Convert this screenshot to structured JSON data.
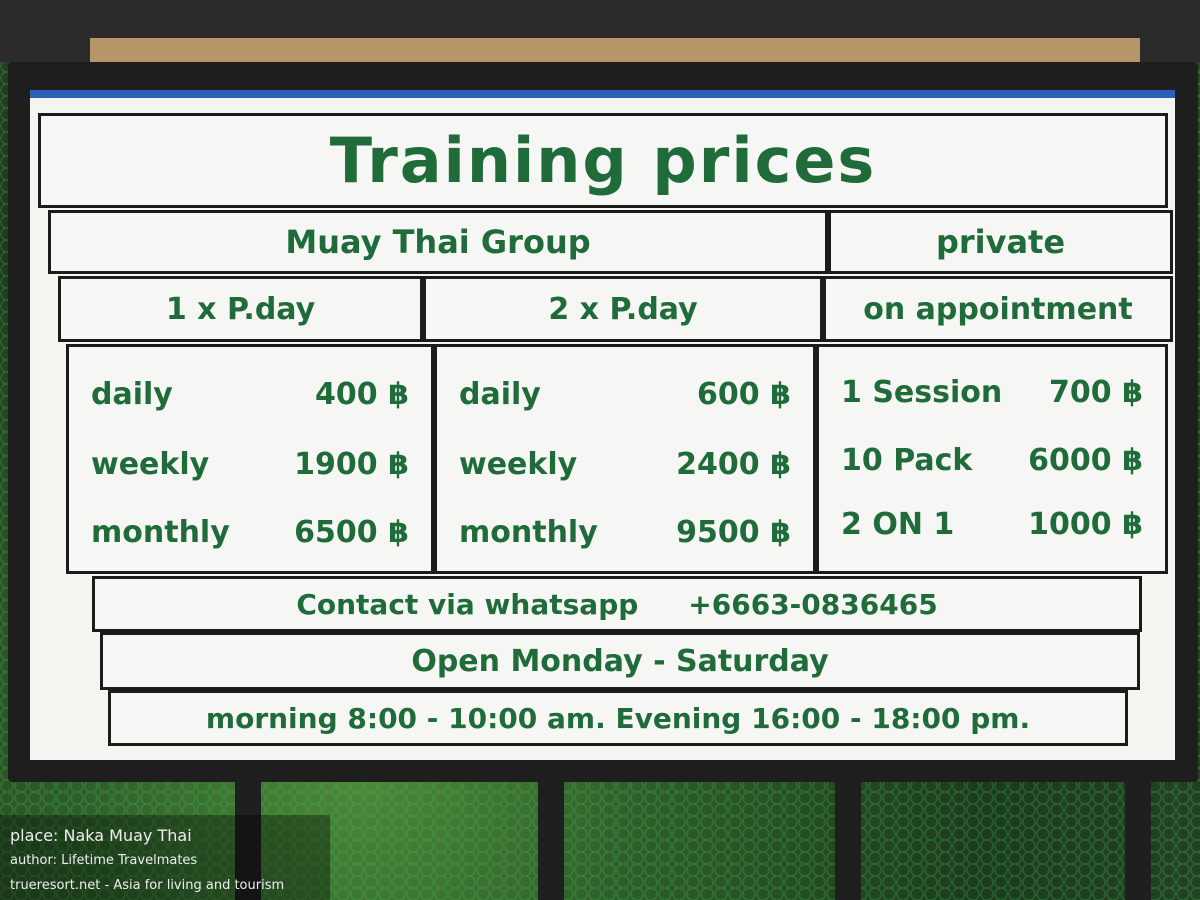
{
  "sign": {
    "title": "Training prices",
    "group_header": "Muay Thai Group",
    "private_header": "private",
    "col1_header": "1 x P.day",
    "col2_header": "2 x P.day",
    "col3_header": "on appointment",
    "col1": [
      {
        "label": "daily",
        "price": "400 ฿"
      },
      {
        "label": "weekly",
        "price": "1900 ฿"
      },
      {
        "label": "monthly",
        "price": "6500 ฿"
      }
    ],
    "col2": [
      {
        "label": "daily",
        "price": "600 ฿"
      },
      {
        "label": "weekly",
        "price": "2400 ฿"
      },
      {
        "label": "monthly",
        "price": "9500 ฿"
      }
    ],
    "col3": [
      {
        "label": "1 Session",
        "price": "700 ฿"
      },
      {
        "label": "10 Pack",
        "price": "6000 ฿"
      },
      {
        "label": "2 ON 1",
        "price": "1000 ฿"
      }
    ],
    "contact": "Contact via whatsapp",
    "phone": "+6663-0836465",
    "open": "Open Monday - Saturday",
    "hours": "morning 8:00 - 10:00 am. Evening 16:00 - 18:00 pm."
  },
  "caption": {
    "place": "place: Naka Muay Thai",
    "author": "author: Lifetime Travelmates",
    "site": "trueresort.net - Asia for living and tourism"
  },
  "colors": {
    "text": "#1f6b3a",
    "border": "#1b1b1b",
    "stripe": "#2d5fb8"
  }
}
